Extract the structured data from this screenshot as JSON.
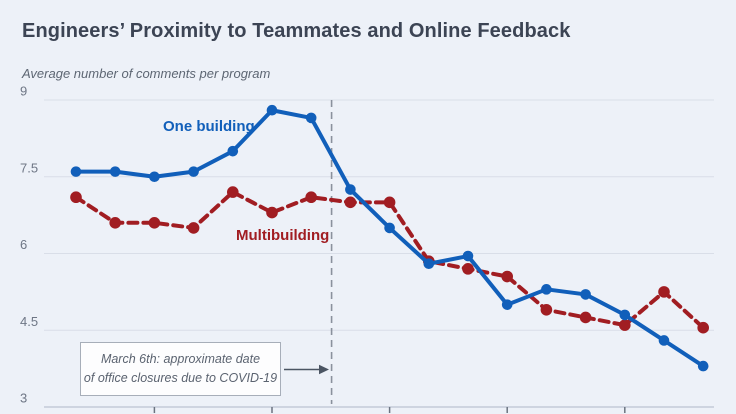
{
  "page": {
    "title": "Engineers’ Proximity to Teammates and Online Feedback",
    "subtitle": "Average number of comments per program"
  },
  "chart_data": {
    "type": "line",
    "title": "Engineers’ Proximity to Teammates and Online Feedback",
    "ylabel": "Average number of comments per program",
    "ylim": [
      3,
      9
    ],
    "yticks": [
      3,
      4.5,
      6,
      7.5,
      9
    ],
    "ytick_labels": [
      "3",
      "4.5",
      "6",
      "7.5",
      "9"
    ],
    "x_point_count": 17,
    "x_axis_ticks_at_point_index": [
      2,
      5,
      8,
      11,
      14
    ],
    "x_tick_labels": [],
    "grid": "horizontal",
    "legend_position": "inline-labels-on-chart",
    "series": [
      {
        "name": "Multibuilding",
        "style": "dashed",
        "color": "#a11d22",
        "values": [
          7.1,
          6.6,
          6.6,
          6.5,
          7.2,
          6.8,
          7.1,
          7.0,
          7.0,
          5.85,
          5.7,
          5.55,
          4.9,
          4.75,
          4.6,
          5.25,
          4.55
        ]
      },
      {
        "name": "One building",
        "style": "solid",
        "color": "#115fba",
        "values": [
          7.6,
          7.6,
          7.5,
          7.6,
          8.0,
          8.8,
          8.65,
          7.25,
          6.5,
          5.8,
          5.95,
          5.0,
          5.3,
          5.2,
          4.8,
          4.3,
          3.8
        ]
      }
    ],
    "event_line": {
      "position_point_index": 6.52,
      "style": "vertical-dashed",
      "color": "#8a919d"
    },
    "annotation": {
      "line1": "March 6th: approximate date",
      "line2": "of office closures due to COVID-19"
    }
  },
  "colors": {
    "background": "#edf1f8",
    "title_text": "#3c4454",
    "subtitle_text": "#5d6673",
    "gridline": "#d9dee8",
    "axis_line": "#c4cbd7",
    "axis_tick": "#6b7380",
    "ytick_text": "#6e7685",
    "one_building_blue": "#115fba",
    "multibuilding_red": "#a11d22",
    "annotation_border": "#a7aeb9",
    "annotation_text": "#5b6370",
    "arrow": "#4b5563"
  }
}
